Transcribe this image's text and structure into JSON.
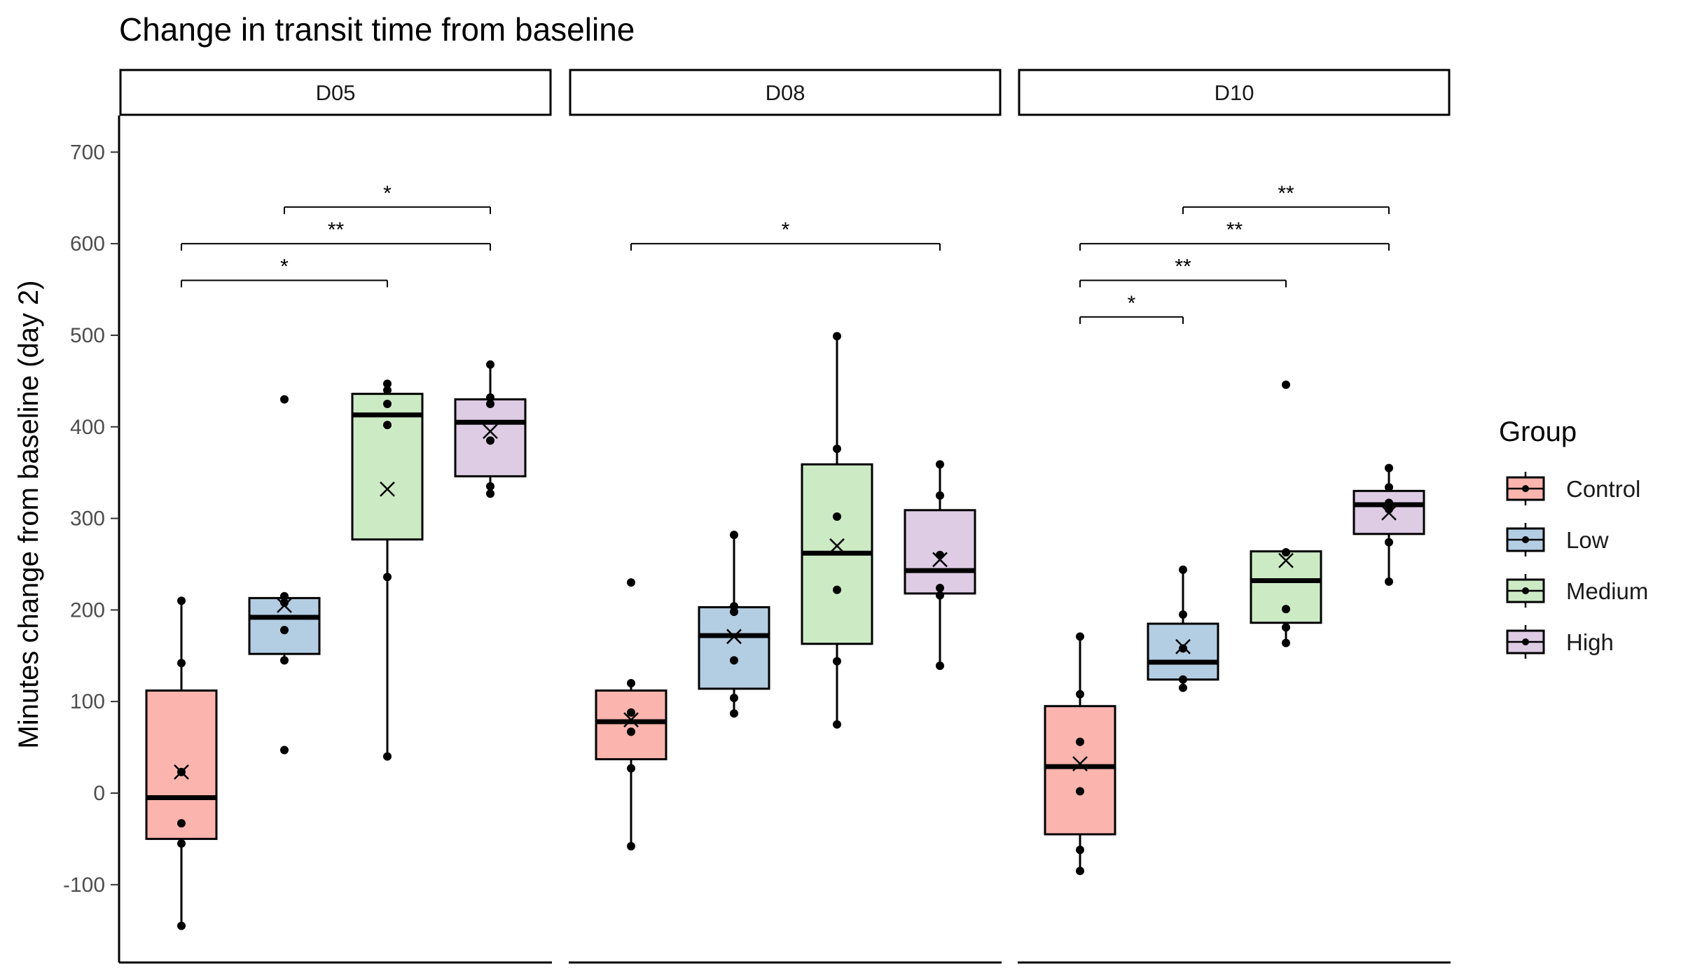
{
  "chart_data": {
    "type": "box",
    "title": "Change in transit time from baseline",
    "ylabel": "Minutes change from baseline (day 2)",
    "xlabel": "",
    "ylim": [
      -185,
      740
    ],
    "yticks": [
      -100,
      0,
      100,
      200,
      300,
      400,
      500,
      600,
      700
    ],
    "groups": [
      "Control",
      "Low",
      "Medium",
      "High"
    ],
    "colors": {
      "Control": "#FBB4AE",
      "Low": "#B3CDE3",
      "Medium": "#CCEBC5",
      "High": "#DECBE4"
    },
    "legend": {
      "title": "Group",
      "position": "right"
    },
    "grid": false,
    "mean_marker": "×",
    "panels": [
      {
        "label": "D05",
        "boxes": [
          {
            "group": "Control",
            "q1": -50,
            "median": -5,
            "q3": 112,
            "whisker_low": -145,
            "whisker_high": 210,
            "mean": 23,
            "points": [
              -145,
              -55,
              -33,
              23,
              142,
              210
            ]
          },
          {
            "group": "Low",
            "q1": 152,
            "median": 192,
            "q3": 213,
            "whisker_low": 145,
            "whisker_high": 215,
            "mean": 205,
            "points": [
              47,
              145,
              178,
              208,
              215,
              430
            ]
          },
          {
            "group": "Medium",
            "q1": 277,
            "median": 413,
            "q3": 436,
            "whisker_low": 40,
            "whisker_high": 447,
            "mean": 332,
            "points": [
              40,
              236,
              402,
              425,
              440,
              447
            ]
          },
          {
            "group": "High",
            "q1": 346,
            "median": 405,
            "q3": 430,
            "whisker_low": 327,
            "whisker_high": 468,
            "mean": 395,
            "points": [
              327,
              335,
              385,
              425,
              432,
              468
            ]
          }
        ],
        "significance": [
          {
            "from": "Control",
            "to": "Medium",
            "y": 560,
            "label": "*"
          },
          {
            "from": "Control",
            "to": "High",
            "y": 600,
            "label": "**"
          },
          {
            "from": "Low",
            "to": "High",
            "y": 640,
            "label": "*"
          }
        ]
      },
      {
        "label": "D08",
        "boxes": [
          {
            "group": "Control",
            "q1": 37,
            "median": 78,
            "q3": 112,
            "whisker_low": -58,
            "whisker_high": 120,
            "mean": 80,
            "points": [
              -58,
              27,
              67,
              88,
              120,
              230
            ]
          },
          {
            "group": "Low",
            "q1": 114,
            "median": 172,
            "q3": 203,
            "whisker_low": 87,
            "whisker_high": 282,
            "mean": 171,
            "points": [
              87,
              104,
              145,
              198,
              204,
              282
            ]
          },
          {
            "group": "Medium",
            "q1": 163,
            "median": 262,
            "q3": 359,
            "whisker_low": 75,
            "whisker_high": 499,
            "mean": 270,
            "points": [
              75,
              144,
              222,
              302,
              376,
              499
            ]
          },
          {
            "group": "High",
            "q1": 218,
            "median": 243,
            "q3": 309,
            "whisker_low": 139,
            "whisker_high": 359,
            "mean": 255,
            "points": [
              139,
              216,
              224,
              260,
              325,
              359
            ]
          }
        ],
        "significance": [
          {
            "from": "Control",
            "to": "High",
            "y": 600,
            "label": "*"
          }
        ]
      },
      {
        "label": "D10",
        "boxes": [
          {
            "group": "Control",
            "q1": -45,
            "median": 29,
            "q3": 95,
            "whisker_low": -85,
            "whisker_high": 171,
            "mean": 32,
            "points": [
              -85,
              -62,
              2,
              56,
              108,
              171
            ]
          },
          {
            "group": "Low",
            "q1": 124,
            "median": 143,
            "q3": 185,
            "whisker_low": 115,
            "whisker_high": 244,
            "mean": 160,
            "points": [
              115,
              124,
              158,
              195,
              244
            ]
          },
          {
            "group": "Medium",
            "q1": 186,
            "median": 232,
            "q3": 264,
            "whisker_low": 164,
            "whisker_high": 264,
            "mean": 254,
            "points": [
              164,
              181,
              201,
              263,
              446
            ]
          },
          {
            "group": "High",
            "q1": 283,
            "median": 315,
            "q3": 330,
            "whisker_low": 231,
            "whisker_high": 355,
            "mean": 306,
            "points": [
              231,
              274,
              310,
              317,
              334,
              355
            ]
          }
        ],
        "significance": [
          {
            "from": "Control",
            "to": "Low",
            "y": 520,
            "label": "*"
          },
          {
            "from": "Control",
            "to": "Medium",
            "y": 560,
            "label": "**"
          },
          {
            "from": "Control",
            "to": "High",
            "y": 600,
            "label": "**"
          },
          {
            "from": "Low",
            "to": "High",
            "y": 640,
            "label": "**"
          }
        ]
      }
    ]
  }
}
